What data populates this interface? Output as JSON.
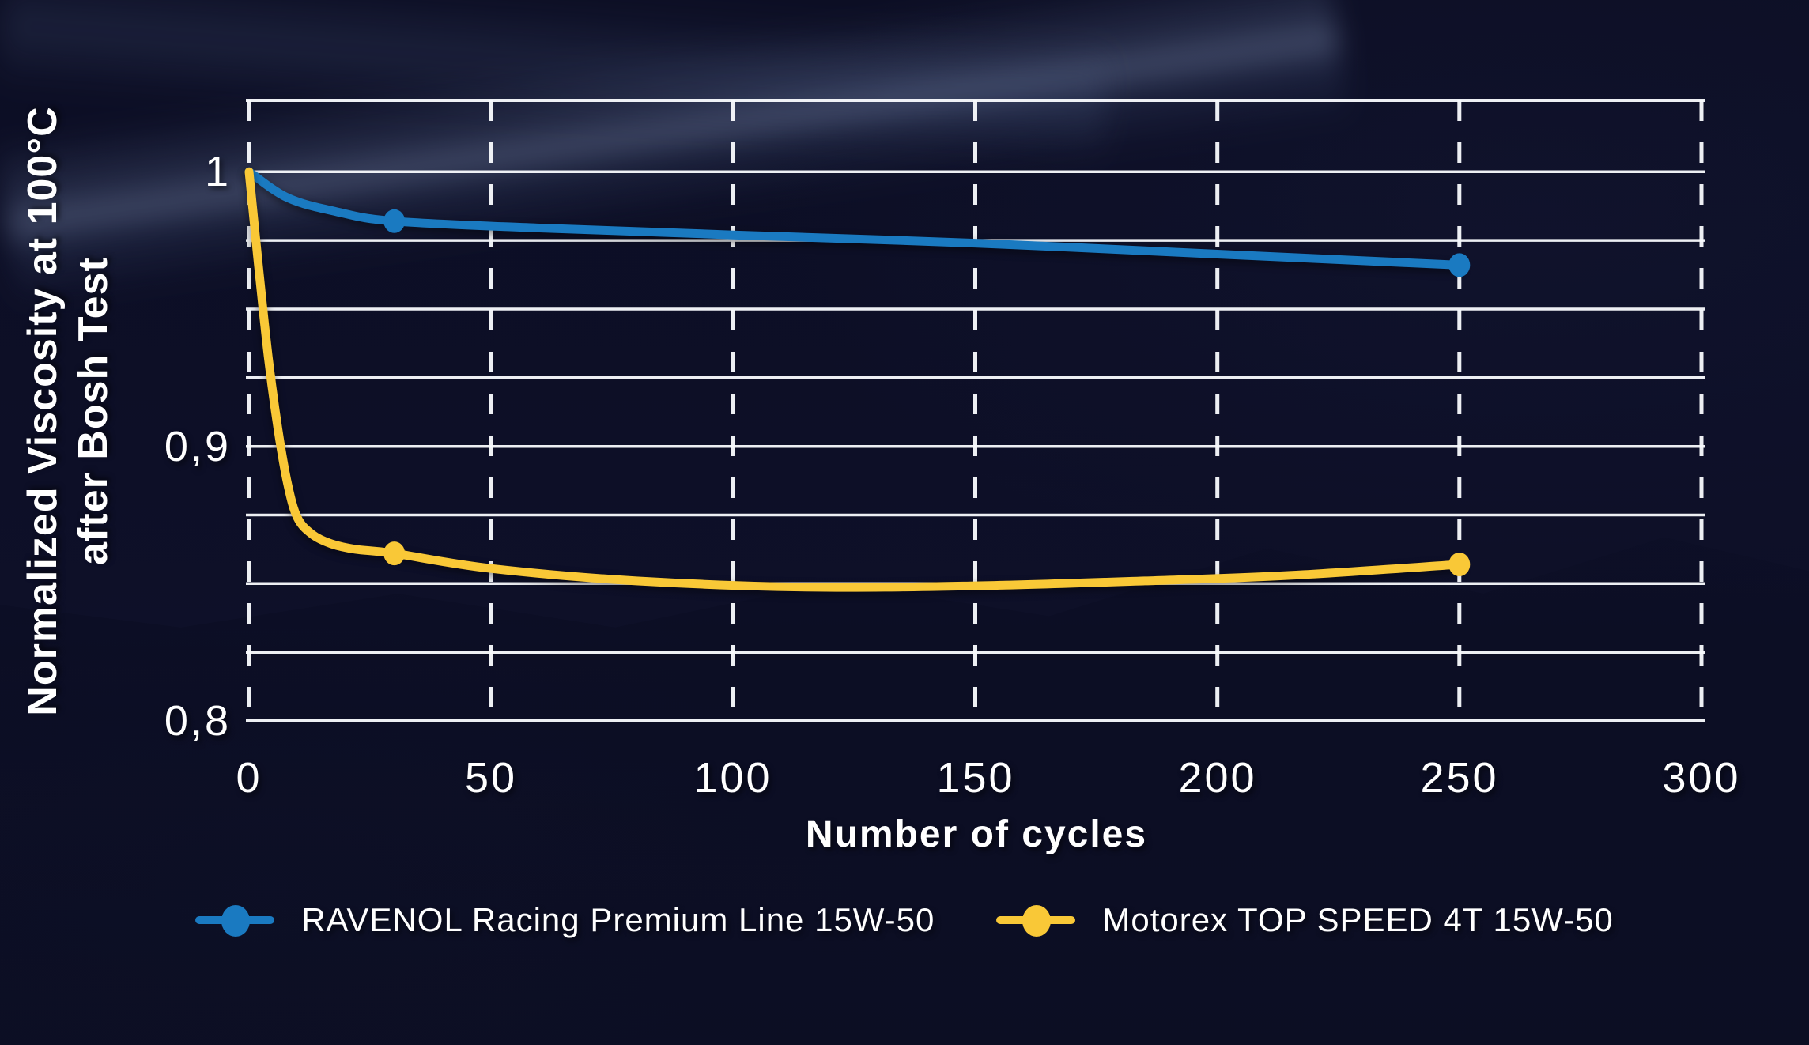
{
  "y_axis": {
    "title_line1": "Normalized Viscosity at 100°C",
    "title_line2": "after Bosh Test"
  },
  "x_axis": {
    "title": "Number of cycles"
  },
  "colors": {
    "background": "#0d0f27",
    "grid": "#f7f9fc",
    "text": "#ffffff",
    "ravenol_blue": "#1a7ac1",
    "motorex_yellow": "#f9c837"
  },
  "chart_data": {
    "type": "line",
    "xlabel": "Number of cycles",
    "ylabel": "Normalized Viscosity at 100°C after Bosh Test",
    "xlim": [
      0,
      300
    ],
    "ylim": [
      0.8,
      1.026
    ],
    "grid": "horizontal solid lines every 0.025, vertical dashed lines every 50",
    "legend_position": "bottom",
    "x_ticks": [
      {
        "value": 0,
        "label": "0"
      },
      {
        "value": 50,
        "label": "50"
      },
      {
        "value": 100,
        "label": "100"
      },
      {
        "value": 150,
        "label": "150"
      },
      {
        "value": 200,
        "label": "200"
      },
      {
        "value": 250,
        "label": "250"
      },
      {
        "value": 300,
        "label": "300"
      }
    ],
    "y_ticks": [
      {
        "value": 1.0,
        "label": "1"
      },
      {
        "value": 0.9,
        "label": "0,9"
      },
      {
        "value": 0.8,
        "label": "0,8"
      }
    ],
    "y_gridlines": [
      0.825,
      0.85,
      0.875,
      0.9,
      0.925,
      0.95,
      0.975,
      1.0
    ],
    "x_gridlines": [
      0,
      50,
      100,
      150,
      200,
      250,
      300
    ],
    "series": [
      {
        "name": "RAVENOL Racing Premium Line 15W-50",
        "color": "#1a7ac1",
        "points": [
          [
            0,
            1.0
          ],
          [
            8,
            0.9905
          ],
          [
            18,
            0.9855
          ],
          [
            30,
            0.982
          ],
          [
            60,
            0.9795
          ],
          [
            100,
            0.977
          ],
          [
            150,
            0.974
          ],
          [
            200,
            0.97
          ],
          [
            250,
            0.966
          ]
        ],
        "markers": [
          [
            30,
            0.982
          ],
          [
            250,
            0.966
          ]
        ]
      },
      {
        "name": "Motorex TOP SPEED 4T 15W-50",
        "color": "#f9c837",
        "points": [
          [
            0,
            1.0
          ],
          [
            2,
            0.965
          ],
          [
            4,
            0.932
          ],
          [
            6,
            0.906
          ],
          [
            8,
            0.886
          ],
          [
            10,
            0.874
          ],
          [
            13,
            0.868
          ],
          [
            17,
            0.8645
          ],
          [
            22,
            0.8625
          ],
          [
            30,
            0.861
          ],
          [
            50,
            0.8555
          ],
          [
            80,
            0.851
          ],
          [
            115,
            0.8487
          ],
          [
            150,
            0.8492
          ],
          [
            185,
            0.851
          ],
          [
            215,
            0.853
          ],
          [
            250,
            0.857
          ]
        ],
        "markers": [
          [
            30,
            0.861
          ],
          [
            250,
            0.857
          ]
        ]
      }
    ]
  }
}
